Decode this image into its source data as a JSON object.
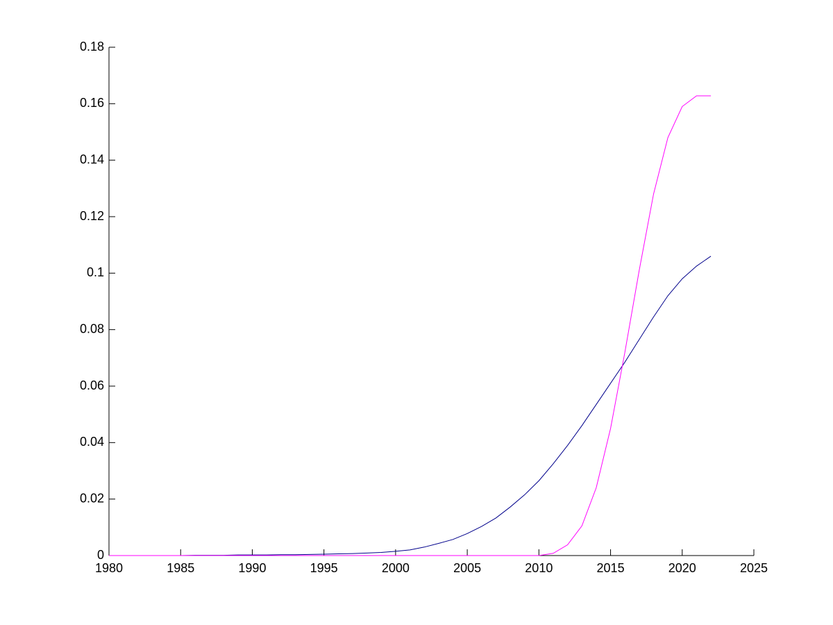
{
  "chart_data": {
    "type": "line",
    "x": [
      1980,
      1981,
      1982,
      1983,
      1984,
      1985,
      1986,
      1987,
      1988,
      1989,
      1990,
      1991,
      1992,
      1993,
      1994,
      1995,
      1996,
      1997,
      1998,
      1999,
      2000,
      2001,
      2002,
      2003,
      2004,
      2005,
      2006,
      2007,
      2008,
      2009,
      2010,
      2011,
      2012,
      2013,
      2014,
      2015,
      2016,
      2017,
      2018,
      2019,
      2020,
      2021,
      2022
    ],
    "series": [
      {
        "color": "#00008b",
        "values": [
          0,
          0,
          0,
          0,
          0,
          0,
          0.0001,
          0.0001,
          0.0001,
          0.0002,
          0.0002,
          0.0002,
          0.0003,
          0.0003,
          0.0004,
          0.0005,
          0.0006,
          0.0007,
          0.0009,
          0.0011,
          0.0015,
          0.002,
          0.003,
          0.0043,
          0.0057,
          0.0078,
          0.0103,
          0.0133,
          0.0172,
          0.0215,
          0.0265,
          0.0325,
          0.039,
          0.046,
          0.0535,
          0.061,
          0.0685,
          0.0765,
          0.0845,
          0.092,
          0.098,
          0.1025,
          0.106
        ]
      },
      {
        "color": "#ff00ff",
        "values": [
          0,
          0,
          0,
          0,
          0,
          0,
          0,
          0,
          0,
          0,
          0,
          0,
          0,
          0,
          0,
          0,
          0,
          0,
          0,
          0,
          0,
          0,
          0,
          0,
          0,
          0,
          0,
          0,
          0,
          0,
          0,
          0.0008,
          0.0038,
          0.0105,
          0.024,
          0.045,
          0.072,
          0.101,
          0.128,
          0.148,
          0.159,
          0.1628,
          0.1628
        ]
      }
    ],
    "xlim": [
      1980,
      2025
    ],
    "xticks": [
      1980,
      1985,
      1990,
      1995,
      2000,
      2005,
      2010,
      2015,
      2020,
      2025
    ],
    "ylim": [
      0,
      0.18
    ],
    "yticks": [
      0,
      0.02,
      0.04,
      0.06,
      0.08,
      0.1,
      0.12,
      0.14,
      0.16,
      0.18
    ]
  }
}
